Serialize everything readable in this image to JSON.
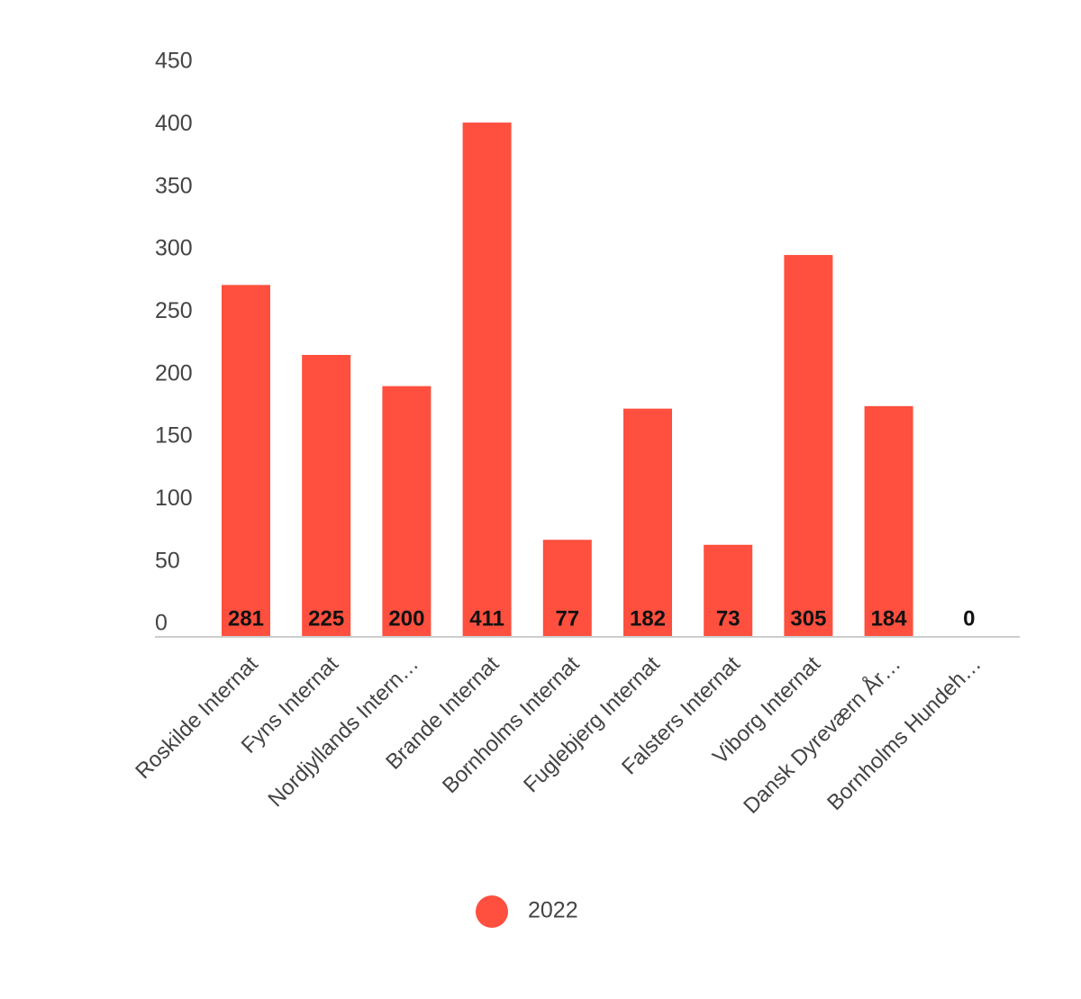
{
  "chart_data": {
    "type": "bar",
    "categories": [
      "Roskilde Internat",
      "Fyns Internat",
      "Nordjyllands Intern…",
      "Brande Internat",
      "Bornholms Internat",
      "Fuglebjerg Internat",
      "Falsters Internat",
      "Viborg Internat",
      "Dansk Dyreværn År…",
      "Bornholms Hundeh…"
    ],
    "series": [
      {
        "name": "2022",
        "color": "#FF4F3E",
        "values": [
          281,
          225,
          200,
          411,
          77,
          182,
          73,
          305,
          184,
          0
        ]
      }
    ],
    "data_labels": [
      "281",
      "225",
      "200",
      "411",
      "77",
      "182",
      "73",
      "305",
      "184",
      "0"
    ],
    "y_ticks": [
      "0",
      "50",
      "100",
      "150",
      "200",
      "250",
      "300",
      "350",
      "400",
      "450"
    ],
    "ylim": [
      0,
      450
    ],
    "grid": false,
    "legend_position": "bottom",
    "axis_color": "#CCCCCC"
  }
}
